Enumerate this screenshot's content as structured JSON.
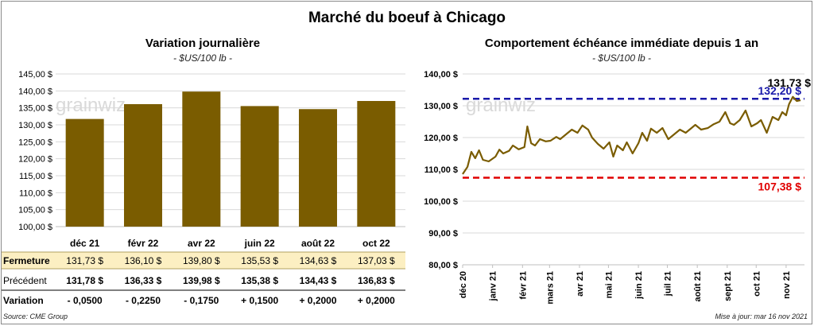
{
  "header": {
    "title": "Marché du boeuf à Chicago"
  },
  "watermark": "grainwiz",
  "footer": {
    "source": "Source: CME Group",
    "updated": "Mise à jour: mar 16 nov 2021"
  },
  "chart_data": [
    {
      "type": "bar",
      "title": "Variation journalière",
      "subtitle": "- $US/100 lb -",
      "categories": [
        "déc 21",
        "févr 22",
        "avr 22",
        "juin 22",
        "août 22",
        "oct 22"
      ],
      "values": [
        131.73,
        136.1,
        139.8,
        135.53,
        134.63,
        137.03
      ],
      "ylim": [
        100,
        145
      ],
      "yticks": [
        "100,00 $",
        "105,00 $",
        "110,00 $",
        "115,00 $",
        "120,00 $",
        "125,00 $",
        "130,00 $",
        "135,00 $",
        "140,00 $",
        "145,00 $"
      ],
      "bar_color": "#7a5c00",
      "grid": true,
      "table": {
        "rows": [
          {
            "label": "Fermeture",
            "values": [
              "131,73  $",
              "136,10  $",
              "139,80  $",
              "135,53  $",
              "134,63  $",
              "137,03  $"
            ]
          },
          {
            "label": "Précédent",
            "values": [
              "131,78  $",
              "136,33  $",
              "139,98  $",
              "135,38  $",
              "134,43  $",
              "136,83  $"
            ]
          },
          {
            "label": "Variation",
            "values": [
              "- 0,0500",
              "- 0,2250",
              "- 0,1750",
              "+ 0,1500",
              "+ 0,2000",
              "+ 0,2000"
            ],
            "signs": [
              "neg",
              "neg",
              "neg",
              "pos",
              "pos",
              "pos"
            ]
          }
        ],
        "highlight_color": "#fcefc2",
        "neg_color": "#e00000",
        "pos_color": "#1a8a1a"
      }
    },
    {
      "type": "line",
      "title": "Comportement  échéance immédiate depuis 1 an",
      "subtitle": "- $US/100 lb -",
      "ylim": [
        80,
        140
      ],
      "yticks": [
        "80,00 $",
        "90,00 $",
        "100,00 $",
        "110,00 $",
        "120,00 $",
        "130,00 $",
        "140,00 $"
      ],
      "xticks": [
        "déc 20",
        "janv 21",
        "févr 21",
        "mars 21",
        "avr 21",
        "mai 21",
        "juin 21",
        "juil 21",
        "août 21",
        "sept 21",
        "oct 21",
        "nov 21"
      ],
      "line_color": "#7a5c00",
      "grid": true,
      "x": [
        "2020-12-01",
        "2020-12-06",
        "2020-12-10",
        "2020-12-14",
        "2020-12-18",
        "2020-12-22",
        "2020-12-28",
        "2021-01-04",
        "2021-01-08",
        "2021-01-12",
        "2021-01-18",
        "2021-01-22",
        "2021-01-28",
        "2021-02-03",
        "2021-02-06",
        "2021-02-10",
        "2021-02-14",
        "2021-02-19",
        "2021-02-25",
        "2021-03-02",
        "2021-03-08",
        "2021-03-12",
        "2021-03-18",
        "2021-03-24",
        "2021-03-30",
        "2021-04-04",
        "2021-04-10",
        "2021-04-14",
        "2021-04-20",
        "2021-04-26",
        "2021-05-02",
        "2021-05-06",
        "2021-05-10",
        "2021-05-16",
        "2021-05-20",
        "2021-05-26",
        "2021-06-01",
        "2021-06-05",
        "2021-06-10",
        "2021-06-14",
        "2021-06-20",
        "2021-06-26",
        "2021-07-02",
        "2021-07-08",
        "2021-07-14",
        "2021-07-20",
        "2021-07-26",
        "2021-07-30",
        "2021-08-05",
        "2021-08-12",
        "2021-08-18",
        "2021-08-24",
        "2021-08-30",
        "2021-09-04",
        "2021-09-08",
        "2021-09-14",
        "2021-09-20",
        "2021-09-26",
        "2021-10-02",
        "2021-10-06",
        "2021-10-12",
        "2021-10-18",
        "2021-10-24",
        "2021-10-28",
        "2021-11-01",
        "2021-11-04",
        "2021-11-08",
        "2021-11-12",
        "2021-11-16"
      ],
      "y": [
        108.5,
        110.8,
        115.5,
        113.5,
        116.0,
        113.0,
        112.5,
        114.0,
        116.2,
        115.0,
        115.8,
        117.5,
        116.3,
        117.0,
        123.5,
        118.2,
        117.5,
        119.5,
        118.8,
        119.0,
        120.2,
        119.5,
        121.0,
        122.5,
        121.5,
        123.8,
        122.5,
        120.0,
        118.0,
        116.5,
        118.5,
        114.0,
        117.5,
        116.0,
        118.5,
        115.0,
        118.2,
        121.5,
        119.0,
        122.8,
        121.5,
        123.0,
        119.5,
        121.0,
        122.5,
        121.5,
        123.0,
        124.0,
        122.5,
        123.0,
        124.2,
        125.0,
        128.0,
        124.5,
        124.0,
        125.5,
        128.5,
        123.5,
        124.5,
        125.5,
        121.5,
        126.5,
        125.5,
        128.0,
        127.0,
        130.5,
        132.8,
        131.5,
        131.73
      ],
      "ref_lines": [
        {
          "value": 132.2,
          "label": "132,20 $",
          "color": "#1a1aaa"
        },
        {
          "value": 107.38,
          "label": "107,38 $",
          "color": "#e00000"
        }
      ],
      "last_label": "131,73 $"
    }
  ]
}
